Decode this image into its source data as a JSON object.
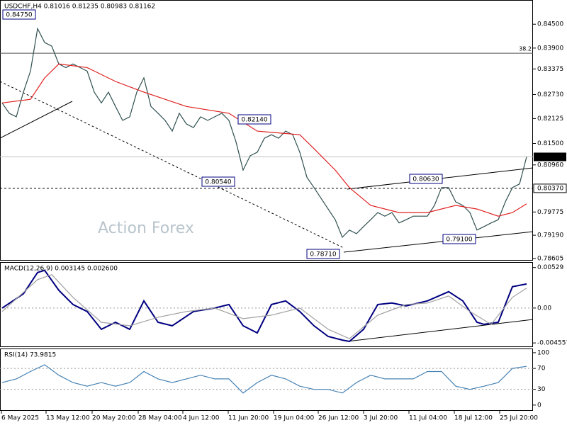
{
  "chart_data": [
    {
      "type": "line",
      "title": "USDCHF,H4  0.81016 0.81235 0.80983 0.81162",
      "watermark": "Action Forex",
      "xlim": [
        -0.3,
        74.9
      ],
      "ylim": [
        0.7855,
        0.8511
      ],
      "yticks": [
        {
          "value": 0.845,
          "label": "0.84500"
        },
        {
          "value": 0.839,
          "label": "0.83900"
        },
        {
          "value": 0.83375,
          "label": "0.83375"
        },
        {
          "value": 0.8273,
          "label": "0.82730"
        },
        {
          "value": 0.82125,
          "label": "0.82125"
        },
        {
          "value": 0.815,
          "label": "0.81500"
        },
        {
          "value": 0.8096,
          "label": "0.80960"
        },
        {
          "value": 0.79775,
          "label": "0.79775"
        },
        {
          "value": 0.7919,
          "label": "0.79190"
        },
        {
          "value": 0.78605,
          "label": "0.78605"
        }
      ],
      "levels": [
        {
          "value": 0.81162,
          "label": "0.81162",
          "style": "current"
        },
        {
          "value": 0.8037,
          "label": "0.80370",
          "style": "dashed"
        },
        {
          "value": 0.8377,
          "label": "38.2",
          "style": "fib"
        }
      ],
      "annotations": [
        "0.84750",
        "0.82140",
        "0.80540",
        "0.78710",
        "0.80630",
        "0.79100"
      ],
      "series": [
        {
          "name": "USDCHF",
          "color": "#2f4f4f",
          "values": [
            0.8252,
            0.8226,
            0.8217,
            0.8279,
            0.8332,
            0.8439,
            0.8404,
            0.8395,
            0.835,
            0.8341,
            0.835,
            0.8341,
            0.8332,
            0.8279,
            0.8252,
            0.8279,
            0.8243,
            0.8208,
            0.8217,
            0.8279,
            0.8315,
            0.8243,
            0.8226,
            0.8208,
            0.8181,
            0.8226,
            0.8199,
            0.819,
            0.8217,
            0.8208,
            0.8217,
            0.8226,
            0.8208,
            0.8154,
            0.8083,
            0.8119,
            0.8128,
            0.8163,
            0.8172,
            0.8163,
            0.8181,
            0.8172,
            0.8128,
            0.8065,
            0.8039,
            0.8012,
            0.7985,
            0.7958,
            0.7914,
            0.7932,
            0.7923,
            0.7941,
            0.7958,
            0.7976,
            0.7967,
            0.7976,
            0.795,
            0.7958,
            0.7967,
            0.7967,
            0.7967,
            0.7994,
            0.8039,
            0.8039,
            0.8003,
            0.7994,
            0.7976,
            0.7932,
            0.7941,
            0.795,
            0.7958,
            0.8003,
            0.8039,
            0.8048,
            0.81162
          ]
        },
        {
          "name": "MA",
          "color": "#e02020",
          "x": [
            0,
            4,
            6,
            8,
            12,
            16,
            20,
            26,
            32,
            36,
            42,
            44,
            47,
            49,
            52,
            56,
            60,
            64,
            67,
            70,
            72,
            74
          ],
          "values": [
            0.8252,
            0.8261,
            0.8315,
            0.835,
            0.8341,
            0.8306,
            0.8279,
            0.8243,
            0.8226,
            0.8181,
            0.8172,
            0.8137,
            0.8083,
            0.8039,
            0.7994,
            0.7976,
            0.7976,
            0.7994,
            0.7985,
            0.7967,
            0.7976,
            0.7998
          ]
        }
      ]
    },
    {
      "type": "line",
      "title": "MACD(12,26,9) 0.003145 0.002600",
      "xlim": [
        -0.3,
        74.9
      ],
      "ylim": [
        -0.0051,
        0.006
      ],
      "yticks": [
        {
          "value": 0.00529,
          "label": "0.00529"
        },
        {
          "value": 0,
          "label": "0.00"
        },
        {
          "value": -0.004557,
          "label": "-0.004557"
        }
      ],
      "levels": [
        0
      ],
      "series": [
        {
          "name": "MACD",
          "color": "#000080",
          "x": [
            0,
            3,
            5,
            6,
            8,
            10,
            12,
            14,
            16,
            18,
            20,
            22,
            24,
            27,
            30,
            32,
            34,
            36,
            38,
            40,
            42,
            44,
            46,
            48,
            49,
            51,
            53,
            55,
            57,
            60,
            63,
            65,
            67,
            68,
            70,
            72,
            74
          ],
          "values": [
            0,
            0.00186,
            0.00464,
            0.00492,
            0.00232,
            0.00046,
            -0.00046,
            -0.00278,
            -0.00186,
            -0.00278,
            0.00093,
            -0.00186,
            -0.00232,
            -0.00046,
            0,
            0.00046,
            -0.00232,
            -0.00325,
            0.00046,
            0.00093,
            -0.00046,
            -0.00232,
            -0.00371,
            -0.00418,
            -0.00436,
            -0.00278,
            0.00046,
            0.00065,
            0.00028,
            0.00093,
            0.00213,
            0.00093,
            -0.00186,
            -0.00213,
            -0.00186,
            0.00278,
            0.003145
          ]
        },
        {
          "name": "Signal",
          "color": "#a0a0a0",
          "x": [
            0,
            5,
            7,
            10,
            14,
            18,
            22,
            26,
            30,
            34,
            38,
            42,
            46,
            49,
            53,
            57,
            60,
            63,
            66,
            69,
            72,
            74
          ],
          "values": [
            -0.00046,
            0.00371,
            0.00436,
            0.00139,
            -0.00186,
            -0.00232,
            -0.00121,
            -0.00046,
            0,
            -0.00139,
            -0.00093,
            0,
            -0.00278,
            -0.00399,
            -0.00093,
            0.00046,
            0.00065,
            0.00158,
            -0.00046,
            -0.00213,
            0.00139,
            0.0026
          ]
        }
      ]
    },
    {
      "type": "line",
      "title": "RSI(14) 73.9815",
      "xlim": [
        -0.3,
        74.9
      ],
      "ylim": [
        -11,
        108
      ],
      "yticks": [
        100,
        70,
        30,
        0
      ],
      "levels": [
        70,
        30
      ],
      "xticks": [
        {
          "value": -0.1,
          "label": "6 May 2025"
        },
        {
          "value": 6.2,
          "label": "13 May 12:00"
        },
        {
          "value": 12.7,
          "label": "20 May 20:00"
        },
        {
          "value": 19.2,
          "label": "28 May 04:00"
        },
        {
          "value": 25.5,
          "label": "4 Jun 12:00"
        },
        {
          "value": 31.9,
          "label": "11 Jun 20:00"
        },
        {
          "value": 38.3,
          "label": "19 Jun 04:00"
        },
        {
          "value": 44.6,
          "label": "26 Jun 12:00"
        },
        {
          "value": 51,
          "label": "3 Jul 20:00"
        },
        {
          "value": 57.4,
          "label": "11 Jul 04:00"
        },
        {
          "value": 63.8,
          "label": "18 Jul 12:00"
        },
        {
          "value": 70.2,
          "label": "25 Jul 20:00"
        }
      ],
      "series": [
        {
          "name": "RSI",
          "color": "#4682b4",
          "x": [
            0,
            2,
            4,
            6,
            8,
            10,
            12,
            14,
            16,
            18,
            20,
            22,
            24,
            26,
            28,
            30,
            32,
            34,
            36,
            38,
            40,
            42,
            44,
            46,
            48,
            50,
            52,
            54,
            56,
            58,
            60,
            62,
            64,
            66,
            68,
            70,
            72,
            74
          ],
          "values": [
            43,
            50,
            64,
            77,
            57,
            43,
            36,
            43,
            36,
            43,
            64,
            50,
            43,
            50,
            57,
            50,
            50,
            23,
            43,
            57,
            50,
            36,
            30,
            30,
            23,
            43,
            57,
            50,
            50,
            50,
            64,
            64,
            36,
            30,
            36,
            43,
            70,
            73.9815
          ]
        }
      ]
    }
  ]
}
